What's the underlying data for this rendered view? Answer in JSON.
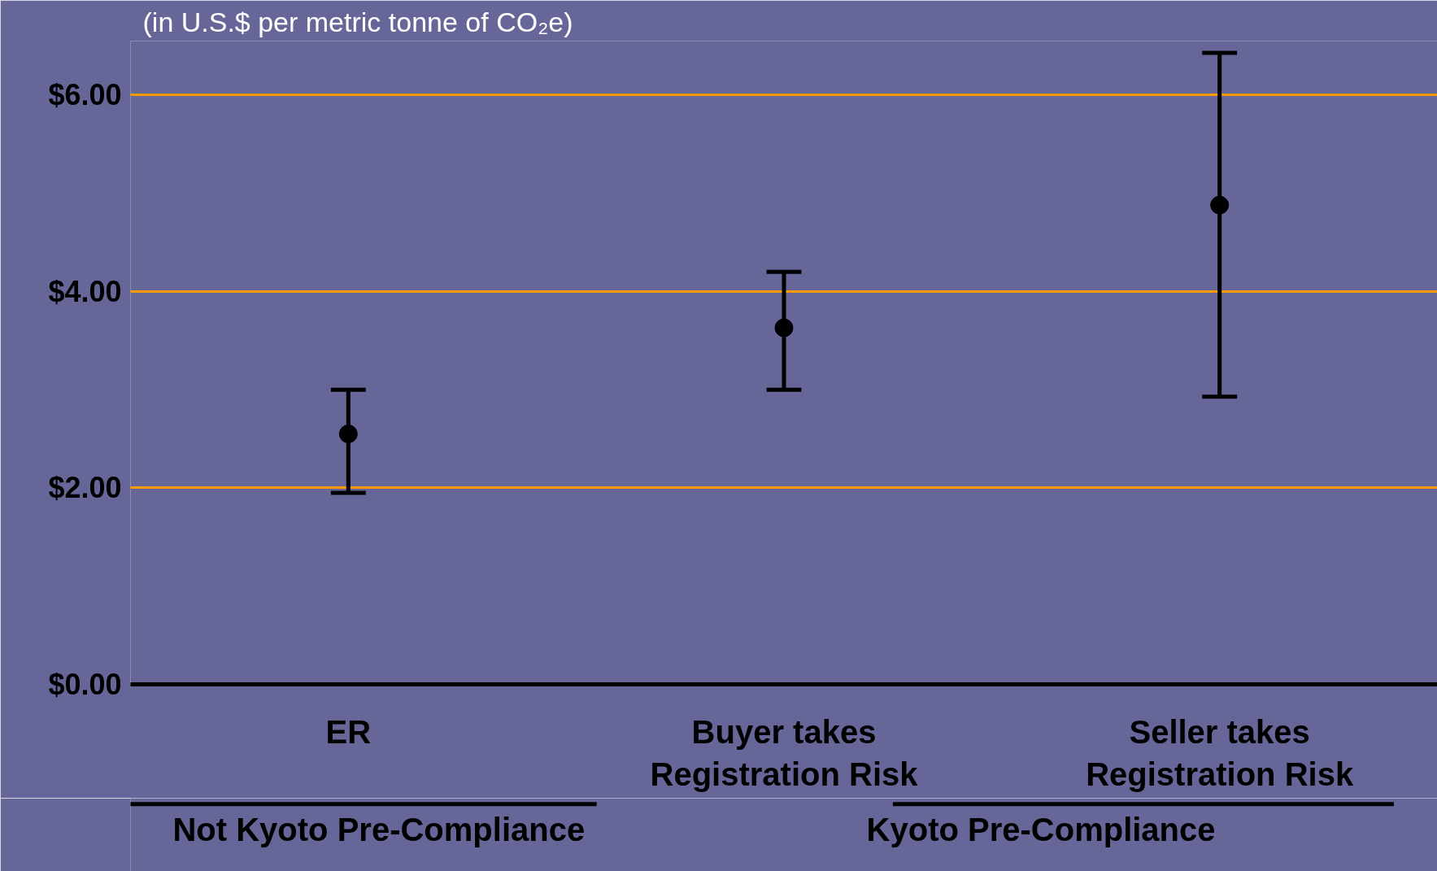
{
  "chart_data": {
    "type": "scatter",
    "subtitle": "(in U.S.$ per metric tonne of CO₂e)",
    "categories": [
      "ER",
      "Buyer takes\nRegistration Risk",
      "Seller takes\nRegistration Risk"
    ],
    "series": [
      {
        "color": "#000000",
        "values": [
          2.55,
          3.63,
          4.88
        ],
        "errors": [
          [
            1.95,
            3.0
          ],
          [
            3.0,
            4.2
          ],
          [
            2.93,
            6.43
          ]
        ]
      }
    ],
    "ylim": [
      0,
      6.55
    ],
    "yticks": [
      {
        "value": 0,
        "label": "$0.00"
      },
      {
        "value": 2,
        "label": "$2.00"
      },
      {
        "value": 4,
        "label": "$4.00"
      },
      {
        "value": 6,
        "label": "$6.00"
      }
    ],
    "grid": "y",
    "marker": "circle",
    "annotations": [
      "Not Kyoto Pre-Compliance",
      "Kyoto Pre-Compliance"
    ]
  }
}
